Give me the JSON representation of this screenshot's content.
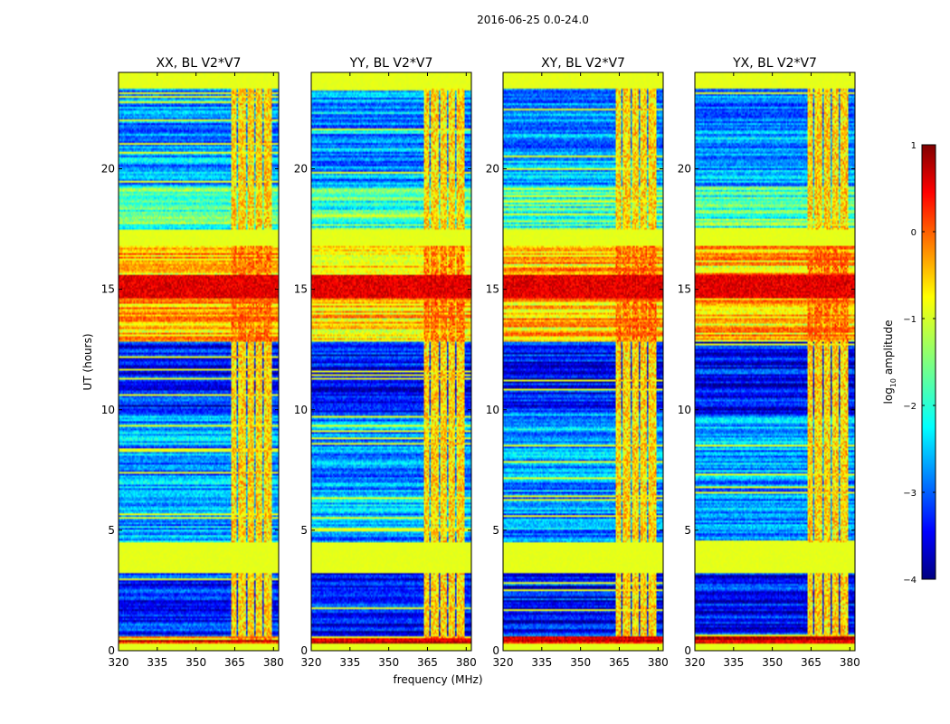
{
  "chart_data": {
    "type": "heatmap",
    "suptitle": "2016-06-25 0.0-24.0",
    "xlabel": "frequency (MHz)",
    "ylabel": "UT (hours)",
    "xlim": [
      320,
      382
    ],
    "ylim": [
      0,
      24
    ],
    "xticks": [
      320,
      335,
      350,
      365,
      380
    ],
    "yticks": [
      0,
      5,
      10,
      15,
      20
    ],
    "panels": [
      {
        "title": "XX, BL V2*V7",
        "seed": 11
      },
      {
        "title": "YY, BL V2*V7",
        "seed": 23
      },
      {
        "title": "XY, BL V2*V7",
        "seed": 37
      },
      {
        "title": "YX, BL V2*V7",
        "seed": 53
      }
    ],
    "colorbar": {
      "label": "log",
      "label_sub": "10",
      "label_rest": " amplitude",
      "min": -4,
      "max": 1,
      "ticks": [
        1,
        0,
        -1,
        -2,
        -3,
        -4
      ],
      "tick_labels": [
        "1",
        "0",
        "−1",
        "−2",
        "−3",
        "−4"
      ],
      "colormap": "jet"
    },
    "rfi_bands_mhz": [
      [
        363.5,
        365.8
      ],
      [
        366.4,
        369.2
      ],
      [
        369.8,
        372.6
      ],
      [
        373.2,
        375.8
      ],
      [
        376.4,
        379.2
      ]
    ],
    "time_segments": [
      {
        "t0": 0.0,
        "t1": 0.3,
        "level": -1.0
      },
      {
        "t0": 0.3,
        "t1": 0.6,
        "level": 0.4
      },
      {
        "t0": 0.6,
        "t1": 3.2,
        "level": -3.3
      },
      {
        "t0": 3.2,
        "t1": 4.5,
        "level": -1.0
      },
      {
        "t0": 4.5,
        "t1": 9.8,
        "level": -2.6
      },
      {
        "t0": 9.8,
        "t1": 12.8,
        "level": -3.3
      },
      {
        "t0": 12.8,
        "t1": 16.8,
        "level": -0.6
      },
      {
        "t0": 16.8,
        "t1": 17.5,
        "level": -1.0
      },
      {
        "t0": 17.5,
        "t1": 19.3,
        "level": -1.8
      },
      {
        "t0": 19.3,
        "t1": 23.3,
        "level": -2.6
      },
      {
        "t0": 23.3,
        "t1": 24.0,
        "level": -1.0
      }
    ]
  }
}
